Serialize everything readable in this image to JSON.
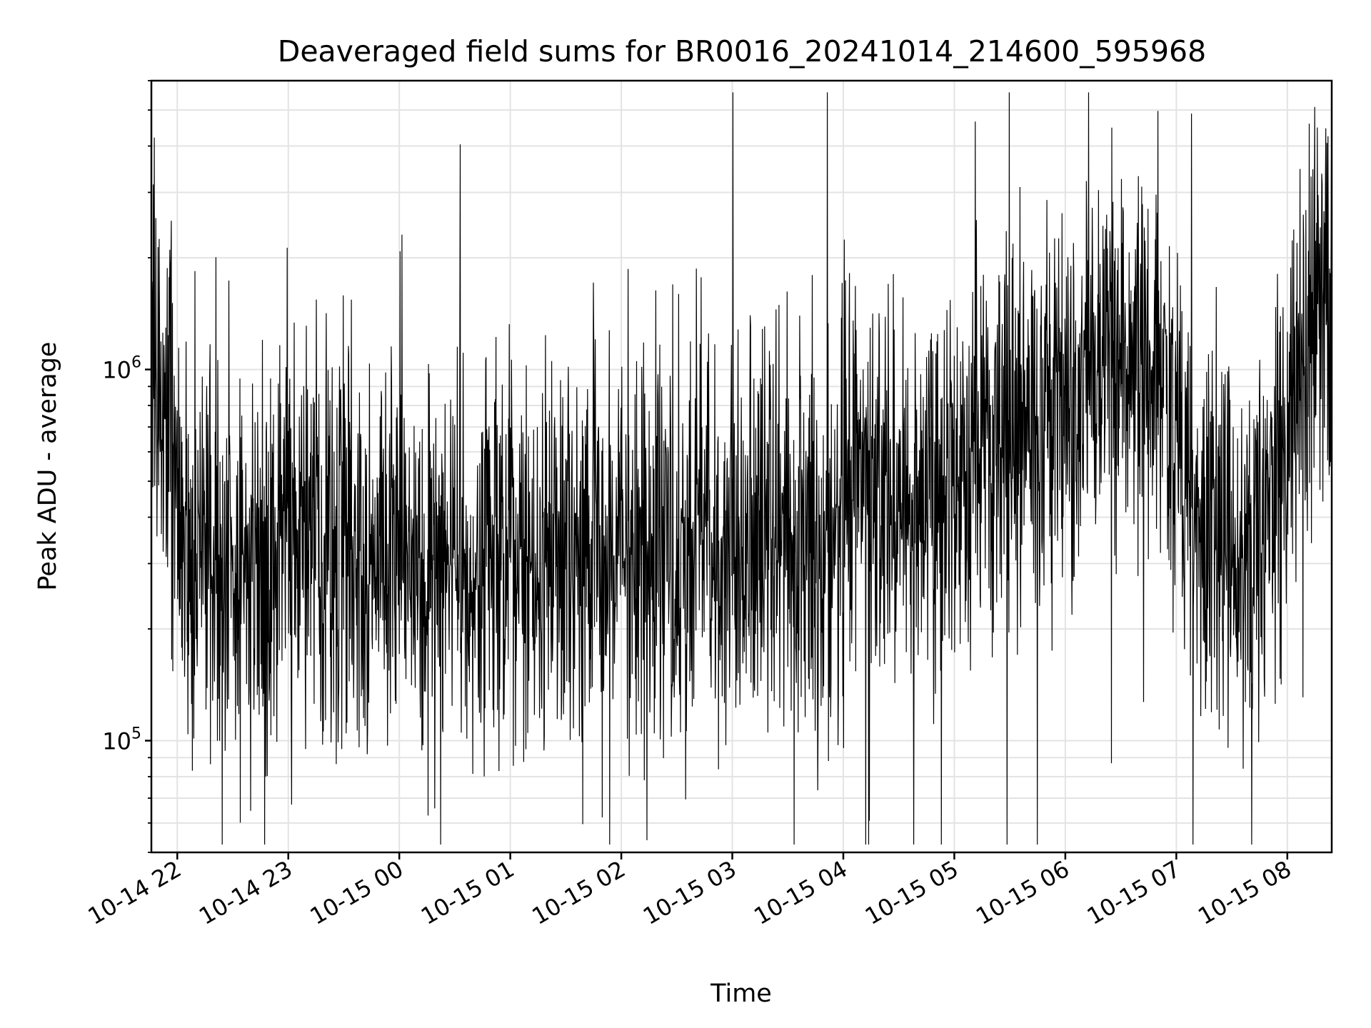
{
  "chart_data": {
    "type": "line",
    "title": "Deaveraged field sums for BR0016_20241014_214600_595968",
    "xlabel": "Time",
    "ylabel": "Peak ADU - average",
    "y_scale": "log",
    "ylim": [
      50000,
      6000000
    ],
    "xlim": [
      "2024-10-14 21:46",
      "2024-10-15 08:24"
    ],
    "grid": true,
    "line_color": "#000000",
    "x_ticks": [
      {
        "time": "2024-10-14 22:00",
        "label": "10-14 22"
      },
      {
        "time": "2024-10-14 23:00",
        "label": "10-14 23"
      },
      {
        "time": "2024-10-15 00:00",
        "label": "10-15 00"
      },
      {
        "time": "2024-10-15 01:00",
        "label": "10-15 01"
      },
      {
        "time": "2024-10-15 02:00",
        "label": "10-15 02"
      },
      {
        "time": "2024-10-15 03:00",
        "label": "10-15 03"
      },
      {
        "time": "2024-10-15 04:00",
        "label": "10-15 04"
      },
      {
        "time": "2024-10-15 05:00",
        "label": "10-15 05"
      },
      {
        "time": "2024-10-15 06:00",
        "label": "10-15 06"
      },
      {
        "time": "2024-10-15 07:00",
        "label": "10-15 07"
      },
      {
        "time": "2024-10-15 08:00",
        "label": "10-15 08"
      }
    ],
    "y_ticks": [
      {
        "value": 100000,
        "base": "10",
        "exp": "5"
      },
      {
        "value": 1000000,
        "base": "10",
        "exp": "6"
      }
    ],
    "series": [
      {
        "x": [
          "2024-10-14 21:46",
          "2024-10-14 21:50",
          "2024-10-14 21:54",
          "2024-10-14 21:58",
          "2024-10-14 22:02",
          "2024-10-14 22:06",
          "2024-10-14 22:10",
          "2024-10-14 22:20",
          "2024-10-14 22:30",
          "2024-10-14 22:40",
          "2024-10-14 22:50",
          "2024-10-14 23:00",
          "2024-10-14 23:10",
          "2024-10-14 23:20",
          "2024-10-14 23:30",
          "2024-10-14 23:40",
          "2024-10-14 23:50",
          "2024-10-15 00:00",
          "2024-10-15 00:15",
          "2024-10-15 00:30",
          "2024-10-15 00:45",
          "2024-10-15 01:00",
          "2024-10-15 01:15",
          "2024-10-15 01:30",
          "2024-10-15 01:45",
          "2024-10-15 02:00",
          "2024-10-15 02:15",
          "2024-10-15 02:30",
          "2024-10-15 02:45",
          "2024-10-15 03:00",
          "2024-10-15 03:15",
          "2024-10-15 03:30",
          "2024-10-15 03:45",
          "2024-10-15 03:50",
          "2024-10-15 04:00",
          "2024-10-15 04:15",
          "2024-10-15 04:30",
          "2024-10-15 04:45",
          "2024-10-15 05:00",
          "2024-10-15 05:15",
          "2024-10-15 05:30",
          "2024-10-15 05:45",
          "2024-10-15 06:00",
          "2024-10-15 06:15",
          "2024-10-15 06:30",
          "2024-10-15 06:45",
          "2024-10-15 06:55",
          "2024-10-15 07:00",
          "2024-10-15 07:10",
          "2024-10-15 07:20",
          "2024-10-15 07:30",
          "2024-10-15 07:40",
          "2024-10-15 07:45",
          "2024-10-15 07:50",
          "2024-10-15 07:55",
          "2024-10-15 08:00",
          "2024-10-15 08:05",
          "2024-10-15 08:10",
          "2024-10-15 08:15",
          "2024-10-15 08:20",
          "2024-10-15 08:24"
        ],
        "y": [
          950000,
          1100000,
          700000,
          520000,
          420000,
          380000,
          330000,
          290000,
          270000,
          265000,
          300000,
          380000,
          390000,
          370000,
          340000,
          330000,
          315000,
          300000,
          300000,
          310000,
          300000,
          305000,
          310000,
          315000,
          330000,
          345000,
          335000,
          330000,
          340000,
          345000,
          355000,
          350000,
          340000,
          310000,
          420000,
          450000,
          430000,
          460000,
          520000,
          560000,
          620000,
          700000,
          800000,
          950000,
          1100000,
          1050000,
          850000,
          560000,
          400000,
          340000,
          320000,
          330000,
          340000,
          380000,
          470000,
          600000,
          850000,
          1100000,
          1250000,
          1200000,
          1150000
        ]
      }
    ],
    "annotations": []
  }
}
